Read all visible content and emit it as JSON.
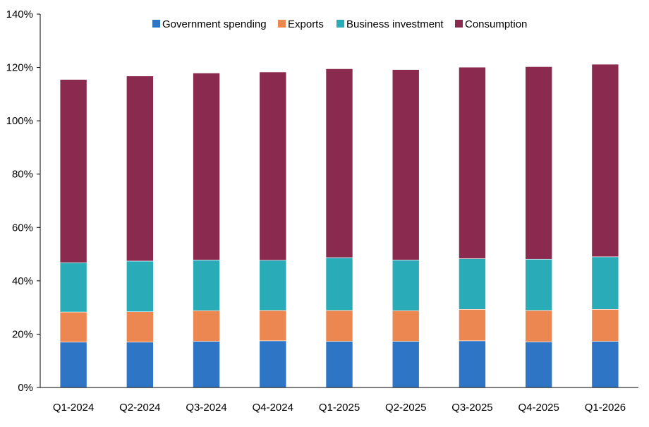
{
  "chart_data": {
    "type": "bar",
    "stacked": true,
    "categories": [
      "Q1-2024",
      "Q2-2024",
      "Q3-2024",
      "Q4-2024",
      "Q1-2025",
      "Q2-2025",
      "Q3-2025",
      "Q4-2025",
      "Q1-2026"
    ],
    "series": [
      {
        "name": "Government spending",
        "color": "#2e75c6",
        "values": [
          17,
          17,
          17.3,
          17.5,
          17.3,
          17.3,
          17.5,
          17.1,
          17.3
        ]
      },
      {
        "name": "Exports",
        "color": "#ed8751",
        "values": [
          11.3,
          11.4,
          11.5,
          11.4,
          11.6,
          11.5,
          11.8,
          11.8,
          12
        ]
      },
      {
        "name": "Business investment",
        "color": "#2aacb8",
        "values": [
          18.5,
          19,
          19,
          18.8,
          19.8,
          19,
          19,
          19.2,
          19.7
        ]
      },
      {
        "name": "Consumption",
        "color": "#8b2a4f",
        "values": [
          68.7,
          69.4,
          70.1,
          70.6,
          70.8,
          71.4,
          71.8,
          72.2,
          72.2
        ]
      }
    ],
    "ylim": [
      0,
      140
    ],
    "yticks": [
      "0%",
      "20%",
      "40%",
      "60%",
      "80%",
      "100%",
      "120%",
      "140%"
    ],
    "ytick_values": [
      0,
      20,
      40,
      60,
      80,
      100,
      120,
      140
    ],
    "grid": false,
    "legend_position": "top"
  }
}
